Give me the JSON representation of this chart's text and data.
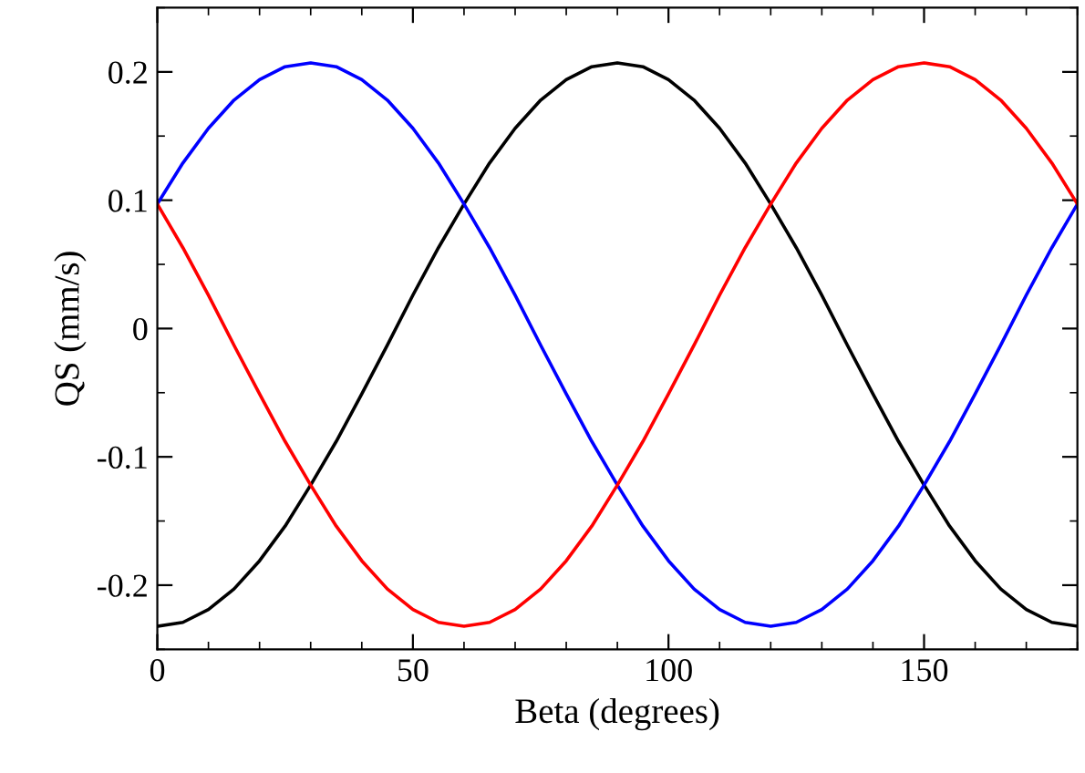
{
  "chart_data": {
    "type": "line",
    "xlabel": "Beta (degrees)",
    "ylabel": "QS (mm/s)",
    "x": [
      0,
      5,
      10,
      15,
      20,
      25,
      30,
      35,
      40,
      45,
      50,
      55,
      60,
      65,
      70,
      75,
      80,
      85,
      90,
      95,
      100,
      105,
      110,
      115,
      120,
      125,
      130,
      135,
      140,
      145,
      150,
      155,
      160,
      165,
      170,
      175,
      180
    ],
    "series": [
      {
        "color": "#000000",
        "values": [
          -0.232,
          -0.229,
          -0.219,
          -0.203,
          -0.181,
          -0.154,
          -0.122,
          -0.088,
          -0.051,
          -0.013,
          0.026,
          0.063,
          0.097,
          0.129,
          0.156,
          0.178,
          0.194,
          0.204,
          0.207,
          0.204,
          0.194,
          0.178,
          0.156,
          0.129,
          0.097,
          0.063,
          0.026,
          -0.013,
          -0.051,
          -0.088,
          -0.122,
          -0.154,
          -0.181,
          -0.203,
          -0.219,
          -0.229,
          -0.232
        ]
      },
      {
        "color": "#0000ff",
        "values": [
          0.097,
          0.129,
          0.156,
          0.178,
          0.194,
          0.204,
          0.207,
          0.204,
          0.194,
          0.178,
          0.156,
          0.129,
          0.097,
          0.063,
          0.026,
          -0.013,
          -0.051,
          -0.088,
          -0.122,
          -0.154,
          -0.181,
          -0.203,
          -0.219,
          -0.229,
          -0.232,
          -0.229,
          -0.219,
          -0.203,
          -0.181,
          -0.154,
          -0.122,
          -0.088,
          -0.051,
          -0.013,
          0.026,
          0.063,
          0.097
        ]
      },
      {
        "color": "#ff0000",
        "values": [
          0.097,
          0.063,
          0.026,
          -0.013,
          -0.051,
          -0.088,
          -0.122,
          -0.154,
          -0.181,
          -0.203,
          -0.219,
          -0.229,
          -0.232,
          -0.229,
          -0.219,
          -0.203,
          -0.181,
          -0.154,
          -0.122,
          -0.088,
          -0.051,
          -0.013,
          0.026,
          0.063,
          0.097,
          0.129,
          0.156,
          0.178,
          0.194,
          0.204,
          0.207,
          0.204,
          0.194,
          0.178,
          0.156,
          0.129,
          0.097
        ]
      }
    ],
    "xlim": [
      0,
      180
    ],
    "xticks": [
      0,
      50,
      100,
      150
    ],
    "ylim": [
      -0.25,
      0.25
    ],
    "yticks": [
      -0.2,
      -0.1,
      0,
      0.1,
      0.2
    ],
    "grid": false,
    "legend": false,
    "marker": "none",
    "line_style": "solid"
  }
}
